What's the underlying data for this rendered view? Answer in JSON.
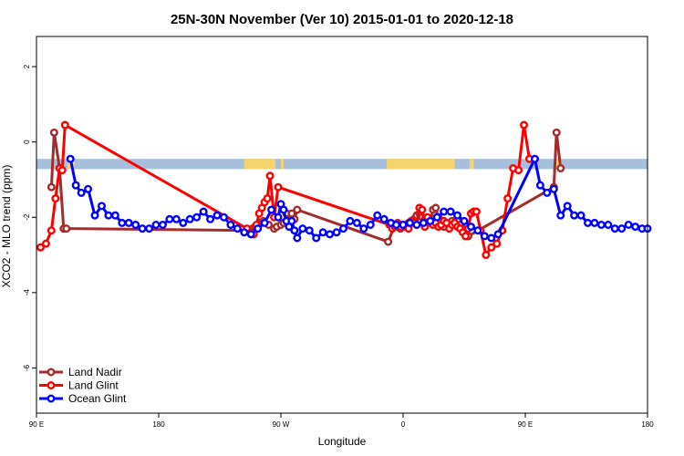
{
  "chart_data": {
    "type": "line",
    "title": "25N-30N November (Ver 10)   2015-01-01 to 2020-12-18",
    "xlabel": "Longitude",
    "ylabel": "XCO2 - MLO trend (ppm)",
    "xlim": [
      90,
      540
    ],
    "ylim": [
      -7.2,
      2.8
    ],
    "x_ticks": [
      {
        "value": 90,
        "label": "90 E"
      },
      {
        "value": 180,
        "label": "180"
      },
      {
        "value": 270,
        "label": "90 W"
      },
      {
        "value": 360,
        "label": "0"
      },
      {
        "value": 450,
        "label": "90 E"
      },
      {
        "value": 540,
        "label": "180"
      }
    ],
    "y_ticks": [
      {
        "value": 2,
        "label": "2"
      },
      {
        "value": 0,
        "label": "0"
      },
      {
        "value": -2,
        "label": "-2"
      },
      {
        "value": -4,
        "label": "-4"
      },
      {
        "value": -6,
        "label": "-6"
      }
    ],
    "landmask": {
      "y_top": -0.45,
      "y_bottom": -0.72,
      "ocean_color": "#a7bfdb",
      "land_color": "#f6d46d",
      "land_ranges": [
        [
          113,
          118
        ],
        [
          243,
          266
        ],
        [
          270,
          272
        ],
        [
          348,
          398
        ],
        [
          409,
          412
        ],
        [
          471,
          476
        ]
      ]
    },
    "legend": {
      "position": "bottom-left"
    },
    "series": [
      {
        "name": "Land Nadir",
        "color": "#a52a2a",
        "x": [
          101,
          103,
          107,
          110,
          112,
          246,
          249,
          251,
          253,
          255,
          257,
          261,
          265,
          267,
          270,
          272,
          274,
          276,
          278,
          280,
          282,
          349,
          354,
          356,
          358,
          360,
          362,
          364,
          366,
          368,
          370,
          372,
          374,
          376,
          378,
          380,
          382,
          384,
          386,
          388,
          390,
          392,
          394,
          396,
          398,
          400,
          402,
          404,
          406,
          408,
          471,
          473,
          476
        ],
        "y": [
          -1.2,
          0.25,
          -0.7,
          -2.3,
          -2.3,
          -2.35,
          -2.3,
          -2.25,
          -2.2,
          -2.15,
          -2.1,
          -2.2,
          -2.3,
          -2.25,
          -2.2,
          -2.15,
          -1.9,
          -2.1,
          -1.9,
          -2.05,
          -1.8,
          -2.65,
          -2.2,
          -2.15,
          -2.3,
          -2.25,
          -2.2,
          -2.15,
          -2.1,
          -2.05,
          -1.95,
          -1.9,
          -2.0,
          -2.05,
          -2.1,
          -2.15,
          -1.8,
          -1.75,
          -2.0,
          -2.1,
          -2.25,
          -2.15,
          -2.2,
          -2.1,
          -2.15,
          -2.1,
          -2.2,
          -2.3,
          -2.4,
          -2.5,
          -1.2,
          0.25,
          -0.7
        ]
      },
      {
        "name": "Land Glint",
        "color": "#ff0000",
        "x": [
          93,
          97,
          101,
          104,
          107,
          109,
          111,
          245,
          248,
          250,
          252,
          254,
          256,
          258,
          260,
          262,
          265,
          268,
          350,
          352,
          354,
          356,
          358,
          360,
          362,
          364,
          366,
          368,
          370,
          372,
          374,
          376,
          378,
          380,
          382,
          384,
          386,
          388,
          390,
          392,
          394,
          396,
          398,
          400,
          402,
          404,
          406,
          408,
          410,
          412,
          414,
          417,
          421,
          425,
          429,
          433,
          437,
          441,
          445,
          449,
          453,
          457
        ],
        "y": [
          -2.8,
          -2.7,
          -2.35,
          -1.5,
          -0.7,
          -0.75,
          0.45,
          -2.3,
          -2.4,
          -2.45,
          -2.2,
          -1.9,
          -1.75,
          -1.6,
          -1.5,
          -0.9,
          -2.0,
          -1.2,
          -2.2,
          -2.3,
          -2.25,
          -2.2,
          -2.25,
          -2.2,
          -2.25,
          -2.3,
          -2.1,
          -2.15,
          -2.2,
          -1.75,
          -1.8,
          -2.25,
          -2.0,
          -2.1,
          -2.2,
          -2.15,
          -2.25,
          -2.2,
          -2.1,
          -2.15,
          -2.3,
          -2.2,
          -2.15,
          -2.25,
          -2.3,
          -2.4,
          -2.5,
          -2.3,
          -1.9,
          -1.85,
          -1.85,
          -2.35,
          -3.0,
          -2.8,
          -2.7,
          -2.35,
          -1.5,
          -0.7,
          -0.75,
          0.45,
          -0.45,
          -0.45
        ]
      },
      {
        "name": "Ocean Glint",
        "color": "#0000ff",
        "x": [
          115,
          119,
          123,
          128,
          133,
          138,
          143,
          148,
          153,
          158,
          163,
          168,
          173,
          178,
          183,
          188,
          193,
          198,
          203,
          208,
          213,
          218,
          223,
          228,
          233,
          238,
          243,
          248,
          253,
          258,
          263,
          268,
          270,
          272,
          274,
          276,
          278,
          280,
          282,
          286,
          291,
          296,
          301,
          306,
          311,
          316,
          321,
          326,
          331,
          336,
          341,
          346,
          351,
          355,
          360,
          365,
          370,
          375,
          380,
          385,
          390,
          395,
          400,
          405,
          410,
          415,
          420,
          425,
          430,
          457,
          461,
          466,
          471,
          476,
          481,
          486,
          491,
          496,
          501,
          506,
          511,
          516,
          521,
          526,
          531,
          536,
          540
        ],
        "y": [
          -0.45,
          -1.15,
          -1.35,
          -1.25,
          -1.95,
          -1.7,
          -1.95,
          -1.95,
          -2.15,
          -2.15,
          -2.2,
          -2.3,
          -2.3,
          -2.2,
          -2.2,
          -2.05,
          -2.05,
          -2.15,
          -2.05,
          -2.0,
          -1.85,
          -2.05,
          -1.95,
          -2.0,
          -2.2,
          -2.3,
          -2.4,
          -2.45,
          -2.3,
          -2.15,
          -1.8,
          -2.0,
          -1.65,
          -1.8,
          -2.1,
          -2.25,
          -2.1,
          -2.35,
          -2.55,
          -2.3,
          -2.35,
          -2.55,
          -2.4,
          -2.45,
          -2.4,
          -2.3,
          -2.1,
          -2.15,
          -2.3,
          -2.2,
          -1.95,
          -2.05,
          -2.15,
          -2.2,
          -2.2,
          -2.15,
          -2.2,
          -2.15,
          -2.1,
          -2.0,
          -1.85,
          -1.85,
          -1.95,
          -2.1,
          -2.25,
          -2.35,
          -2.5,
          -2.55,
          -2.45,
          -0.45,
          -1.15,
          -1.35,
          -1.25,
          -1.95,
          -1.7,
          -1.95,
          -1.95,
          -2.15,
          -2.15,
          -2.2,
          -2.2,
          -2.3,
          -2.3,
          -2.2,
          -2.25,
          -2.3,
          -2.3
        ]
      }
    ]
  }
}
